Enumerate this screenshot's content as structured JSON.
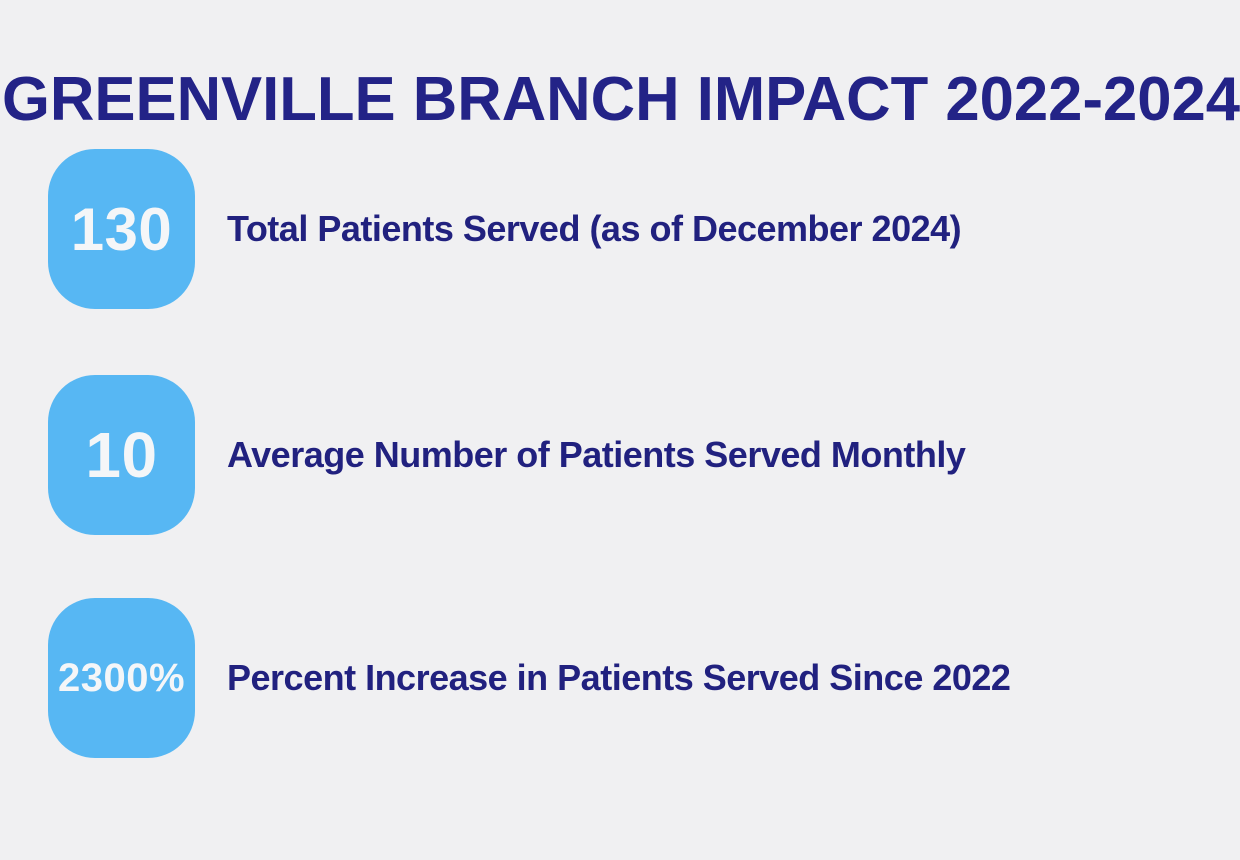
{
  "title": "GREENVILLE BRANCH IMPACT 2022-2024",
  "colors": {
    "background": "#f0f0f2",
    "navy_text": "#232387",
    "badge_blue": "#57b7f3",
    "stat_number_white": "#f4f6f8"
  },
  "stats": [
    {
      "value": "130",
      "label": "Total Patients Served (as of December 2024)"
    },
    {
      "value": "10",
      "label": "Average Number of Patients Served Monthly"
    },
    {
      "value": "2300%",
      "label": "Percent Increase in Patients Served Since 2022"
    }
  ]
}
